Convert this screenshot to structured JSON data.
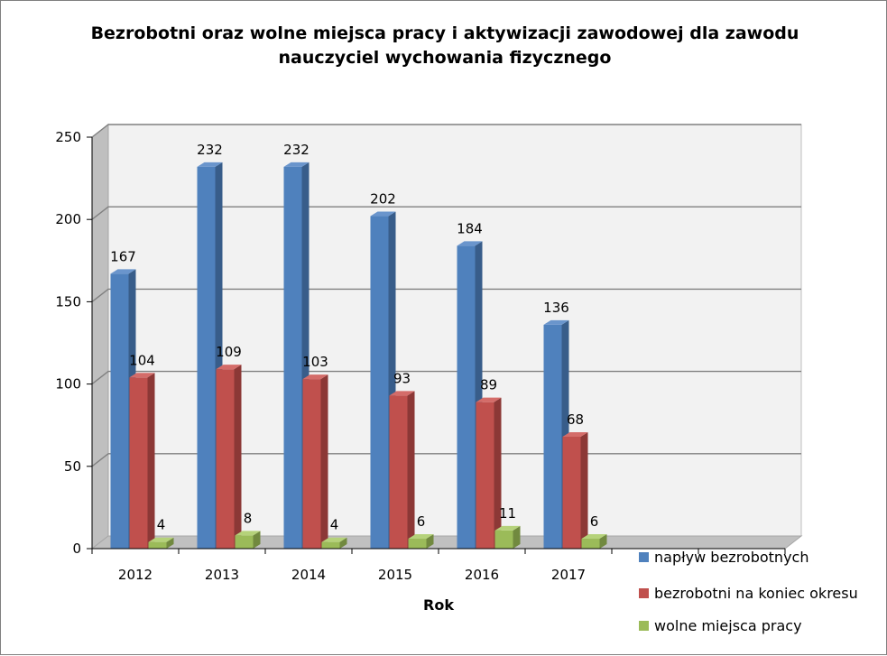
{
  "chart_data": {
    "type": "bar",
    "title": [
      "Bezrobotni oraz wolne miejsca pracy i aktywizacji zawodowej dla zawodu",
      "nauczyciel wychowania fizycznego"
    ],
    "xlabel": "Rok",
    "ylabel": "",
    "ylim": [
      0,
      250
    ],
    "yticks": [
      "0",
      "50",
      "100",
      "150",
      "200",
      "250"
    ],
    "categories": [
      "2012",
      "2013",
      "2014",
      "2015",
      "2016",
      "2017"
    ],
    "series": [
      {
        "name": "napływ bezrobotnych",
        "values": [
          167,
          232,
          232,
          202,
          184,
          136
        ],
        "color": "#4f81bd",
        "side": "#385d8a",
        "top": "#6a95cc"
      },
      {
        "name": "bezrobotni na koniec okresu",
        "values": [
          104,
          109,
          103,
          93,
          89,
          68
        ],
        "color": "#c0504d",
        "side": "#8c3836",
        "top": "#d46c69"
      },
      {
        "name": "wolne miejsca pracy",
        "values": [
          4,
          8,
          4,
          6,
          11,
          6
        ],
        "color": "#9bbb59",
        "side": "#71893f",
        "top": "#b5d27a"
      }
    ],
    "data_labels": [
      [
        "167",
        "232",
        "232",
        "202",
        "184",
        "136"
      ],
      [
        "104",
        "109",
        "103",
        "93",
        "89",
        "68"
      ],
      [
        "4",
        "8",
        "4",
        "6",
        "11",
        "6"
      ]
    ],
    "grid": true,
    "legend": "right"
  }
}
